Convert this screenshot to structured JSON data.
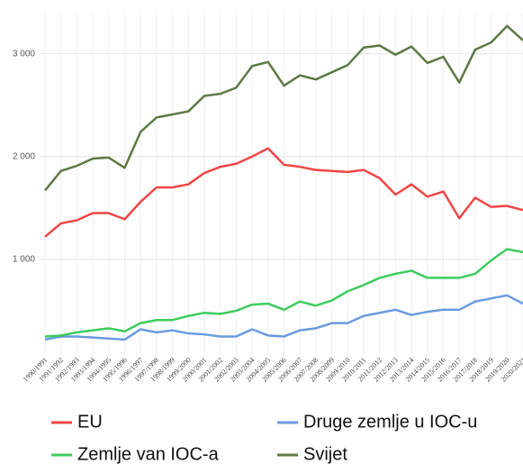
{
  "chart_data": {
    "type": "line",
    "categories": [
      "1990/1991",
      "1991/1992",
      "1992/1993",
      "1993/1994",
      "1994/1995",
      "1995/1996",
      "1996/1997",
      "1997/1998",
      "1998/1999",
      "1999/2000",
      "2000/2001",
      "2001/2002",
      "2002/2003",
      "2003/2004",
      "2004/2005",
      "2005/2006",
      "2006/2007",
      "2007/2008",
      "2008/2009",
      "2009/2010",
      "2010/2011",
      "2011/2012",
      "2012/2013",
      "2013/2014",
      "2014/2015",
      "2015/2016",
      "2016/2017",
      "2017/2018",
      "2018/2019",
      "2019/2020",
      "2020/2021"
    ],
    "series": [
      {
        "name": "EU",
        "color": "#f04646",
        "values": [
          1220,
          1350,
          1380,
          1450,
          1450,
          1390,
          1560,
          1700,
          1700,
          1730,
          1840,
          1900,
          1930,
          2000,
          2080,
          1920,
          1900,
          1870,
          1860,
          1850,
          1870,
          1790,
          1630,
          1730,
          1610,
          1660,
          1400,
          1600,
          1510,
          1520,
          1480
        ]
      },
      {
        "name": "Druge zemlje u IOC-u",
        "color": "#6a9be0",
        "values": [
          220,
          250,
          250,
          240,
          230,
          220,
          320,
          290,
          310,
          280,
          270,
          250,
          250,
          320,
          260,
          250,
          310,
          330,
          380,
          380,
          450,
          480,
          510,
          460,
          490,
          510,
          510,
          590,
          620,
          650,
          570
        ]
      },
      {
        "name": "Zemlje van IOC-a",
        "color": "#3ecc5e",
        "values": [
          250,
          260,
          290,
          310,
          330,
          300,
          380,
          410,
          410,
          450,
          480,
          470,
          500,
          560,
          570,
          510,
          590,
          550,
          600,
          690,
          750,
          820,
          860,
          890,
          820,
          820,
          820,
          860,
          990,
          1100,
          1070
        ]
      },
      {
        "name": "Svijet",
        "color": "#5c7a45",
        "values": [
          1670,
          1860,
          1910,
          1980,
          1990,
          1890,
          2240,
          2380,
          2410,
          2440,
          2590,
          2610,
          2670,
          2880,
          2920,
          2690,
          2790,
          2750,
          2820,
          2890,
          3060,
          3080,
          2990,
          3070,
          2910,
          2970,
          2720,
          3040,
          3110,
          3270,
          3130
        ]
      }
    ],
    "ylim": [
      0,
      3400
    ],
    "yticks": [
      {
        "value": 1000,
        "label": "1 000"
      },
      {
        "value": 2000,
        "label": "2 000"
      },
      {
        "value": 3000,
        "label": "3 000"
      }
    ],
    "grid": true
  }
}
